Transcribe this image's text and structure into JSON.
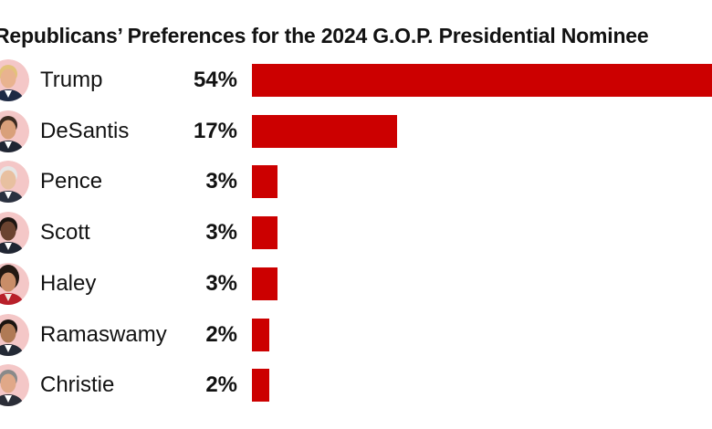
{
  "title": "Republicans’ Preferences for the 2024 G.O.P. Presidential Nominee",
  "colors": {
    "bar": "#cc0000",
    "avatar_bg": "#f4c7c7",
    "text": "#121212"
  },
  "chart_data": {
    "type": "bar",
    "orientation": "horizontal",
    "title": "Republicans’ Preferences for the 2024 G.O.P. Presidential Nominee",
    "categories": [
      "Trump",
      "DeSantis",
      "Pence",
      "Scott",
      "Haley",
      "Ramaswamy",
      "Christie"
    ],
    "values": [
      54,
      17,
      3,
      3,
      3,
      2,
      2
    ],
    "labels": [
      "54%",
      "17%",
      "3%",
      "3%",
      "3%",
      "2%",
      "2%"
    ],
    "xlabel": "",
    "ylabel": "",
    "xlim": [
      0,
      54
    ],
    "grid": false
  },
  "candidates": [
    {
      "name": "Trump",
      "pct_label": "54%",
      "icon": "trump-portrait-icon"
    },
    {
      "name": "DeSantis",
      "pct_label": "17%",
      "icon": "desantis-portrait-icon"
    },
    {
      "name": "Pence",
      "pct_label": "3%",
      "icon": "pence-portrait-icon"
    },
    {
      "name": "Scott",
      "pct_label": "3%",
      "icon": "scott-portrait-icon"
    },
    {
      "name": "Haley",
      "pct_label": "3%",
      "icon": "haley-portrait-icon"
    },
    {
      "name": "Ramaswamy",
      "pct_label": "2%",
      "icon": "ramaswamy-portrait-icon"
    },
    {
      "name": "Christie",
      "pct_label": "2%",
      "icon": "christie-portrait-icon"
    }
  ]
}
